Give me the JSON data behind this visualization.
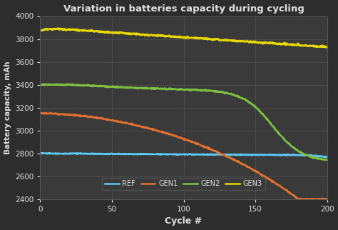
{
  "title": "Variation in batteries capacity during cycling",
  "xlabel": "Cycle #",
  "ylabel": "Battery capacity, mAh",
  "background_color": "#2d2d2d",
  "plot_bg_color": "#3a3a3a",
  "grid_color": "#555555",
  "text_color": "#e0e0e0",
  "xlim": [
    0,
    200
  ],
  "ylim": [
    2400,
    4000
  ],
  "yticks": [
    2400,
    2600,
    2800,
    3000,
    3200,
    3400,
    3600,
    3800,
    4000
  ],
  "xticks": [
    0,
    50,
    100,
    150,
    200
  ],
  "REF_color": "#5bc8f5",
  "GEN1_color": "#e07030",
  "GEN2_color": "#7dc142",
  "GEN3_color": "#e8d800",
  "legend_bg": "#3a3a3a",
  "legend_text_color": "#e0e0e0",
  "linewidth": 1.8
}
